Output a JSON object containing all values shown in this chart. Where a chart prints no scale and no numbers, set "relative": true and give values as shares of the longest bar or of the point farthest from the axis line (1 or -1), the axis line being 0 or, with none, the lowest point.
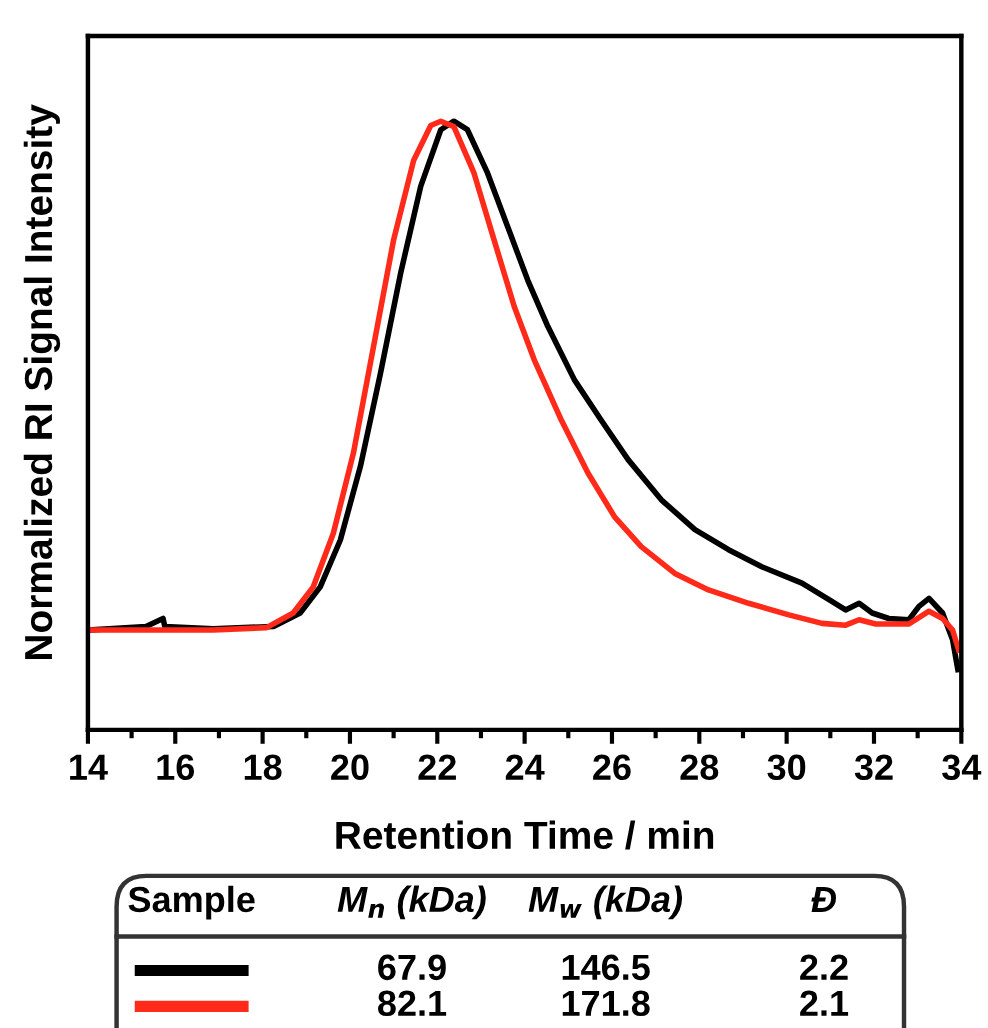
{
  "chart_data": {
    "type": "line",
    "relative": true,
    "xlabel": "Retention Time / min",
    "ylabel": "Normalized RI Signal Intensity",
    "xlim": [
      14,
      34
    ],
    "xticks": [
      14,
      16,
      18,
      20,
      22,
      24,
      26,
      28,
      30,
      32,
      34
    ],
    "grid": false,
    "legend": false,
    "marker": "none",
    "line_style": "solid",
    "series": [
      {
        "color": "#000000",
        "x": [
          14.0,
          15.33,
          15.72,
          15.76,
          16.87,
          18.25,
          18.86,
          19.32,
          19.78,
          20.24,
          20.7,
          21.16,
          21.62,
          22.08,
          22.38,
          22.69,
          23.15,
          23.61,
          24.07,
          24.53,
          25.14,
          25.75,
          26.37,
          27.13,
          27.9,
          28.67,
          29.43,
          30.35,
          30.97,
          31.35,
          31.66,
          31.96,
          32.34,
          32.8,
          33.03,
          33.26,
          33.57,
          33.8,
          33.92
        ],
        "values": [
          0.164,
          0.17,
          0.183,
          0.17,
          0.166,
          0.17,
          0.192,
          0.235,
          0.312,
          0.433,
          0.586,
          0.75,
          0.893,
          0.986,
          1.0,
          0.986,
          0.915,
          0.827,
          0.739,
          0.663,
          0.575,
          0.509,
          0.444,
          0.378,
          0.329,
          0.296,
          0.268,
          0.241,
          0.214,
          0.197,
          0.208,
          0.192,
          0.183,
          0.181,
          0.203,
          0.216,
          0.192,
          0.148,
          0.099
        ]
      },
      {
        "color": "#ff2a1a",
        "x": [
          14.0,
          16.87,
          18.09,
          18.7,
          19.16,
          19.62,
          20.08,
          20.54,
          21.0,
          21.46,
          21.85,
          22.08,
          22.38,
          22.84,
          23.3,
          23.76,
          24.22,
          24.84,
          25.45,
          26.06,
          26.67,
          27.44,
          28.21,
          29.13,
          30.05,
          30.81,
          31.35,
          31.66,
          32.04,
          32.8,
          33.26,
          33.57,
          33.8,
          33.94
        ],
        "values": [
          0.164,
          0.164,
          0.168,
          0.192,
          0.235,
          0.323,
          0.455,
          0.63,
          0.805,
          0.936,
          0.993,
          1.0,
          0.991,
          0.915,
          0.805,
          0.696,
          0.608,
          0.509,
          0.422,
          0.35,
          0.301,
          0.257,
          0.23,
          0.208,
          0.189,
          0.175,
          0.172,
          0.181,
          0.174,
          0.174,
          0.195,
          0.183,
          0.164,
          0.131
        ]
      }
    ],
    "annotations": [
      "Sample",
      "M$_{n}$ (kDa)",
      "M$_{w}$ (kDa)",
      "Đ",
      "67.9",
      "146.5",
      "2.2",
      "82.1",
      "171.8",
      "2.1"
    ]
  }
}
